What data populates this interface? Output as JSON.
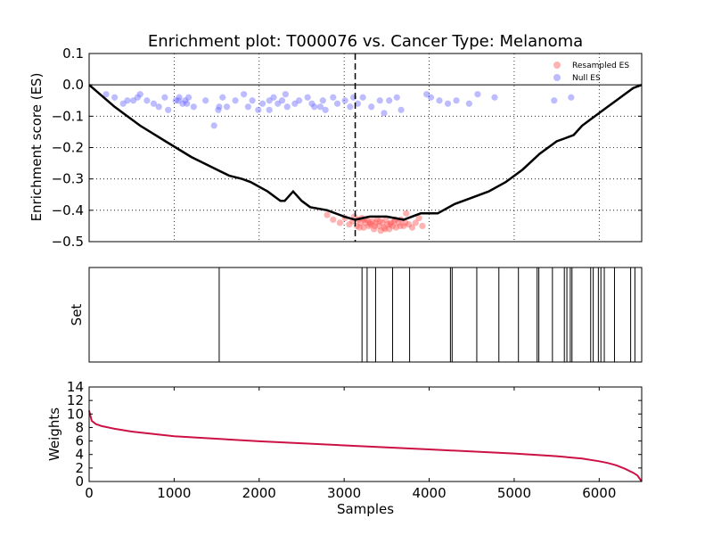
{
  "chart_data": [
    {
      "type": "line",
      "panel": "enrichment",
      "title": "Enrichment plot: T000076 vs. Cancer Type: Melanoma",
      "xlabel": "",
      "ylabel": "Enrichment score (ES)",
      "xlim": [
        0,
        6500
      ],
      "ylim": [
        -0.5,
        0.1
      ],
      "yticks": [
        "0.1",
        "0.0",
        "−0.1",
        "−0.2",
        "−0.3",
        "−0.4",
        "−0.5"
      ],
      "ytick_values": [
        0.1,
        0.0,
        -0.1,
        -0.2,
        -0.3,
        -0.4,
        -0.5
      ],
      "xgrid_values": [
        1000,
        2000,
        3000,
        4000,
        5000,
        6000
      ],
      "grid": true,
      "legend_position": "top-right",
      "legend": [
        "Resampled ES",
        "Null ES"
      ],
      "marker_x": 3130,
      "es_curve": {
        "color": "#000000",
        "x": [
          0,
          300,
          600,
          900,
          1200,
          1500,
          1650,
          1800,
          1900,
          2100,
          2200,
          2250,
          2300,
          2400,
          2500,
          2600,
          2800,
          3000,
          3130,
          3300,
          3500,
          3700,
          3900,
          4100,
          4300,
          4500,
          4700,
          4900,
          5100,
          5300,
          5500,
          5600,
          5700,
          5800,
          5900,
          6000,
          6100,
          6200,
          6300,
          6400,
          6500
        ],
        "y": [
          0.0,
          -0.07,
          -0.13,
          -0.18,
          -0.23,
          -0.27,
          -0.29,
          -0.3,
          -0.31,
          -0.34,
          -0.36,
          -0.37,
          -0.37,
          -0.34,
          -0.37,
          -0.39,
          -0.4,
          -0.42,
          -0.43,
          -0.42,
          -0.42,
          -0.43,
          -0.41,
          -0.41,
          -0.38,
          -0.36,
          -0.34,
          -0.31,
          -0.27,
          -0.22,
          -0.18,
          -0.17,
          -0.16,
          -0.13,
          -0.11,
          -0.09,
          -0.07,
          -0.05,
          -0.03,
          -0.01,
          0.0
        ]
      },
      "resampled_es": {
        "color": "#ff5555",
        "x": [
          2800,
          2870,
          2950,
          3010,
          3060,
          3100,
          3120,
          3150,
          3170,
          3190,
          3210,
          3230,
          3250,
          3270,
          3290,
          3310,
          3330,
          3350,
          3370,
          3390,
          3410,
          3430,
          3450,
          3470,
          3490,
          3510,
          3530,
          3550,
          3570,
          3590,
          3610,
          3640,
          3670,
          3700,
          3730,
          3760,
          3800,
          3840,
          3880,
          3920,
          3180,
          3240,
          3300,
          3360,
          3420,
          3480,
          3540,
          3600,
          3660,
          3720
        ],
        "y": [
          -0.415,
          -0.43,
          -0.44,
          -0.425,
          -0.445,
          -0.435,
          -0.42,
          -0.45,
          -0.43,
          -0.44,
          -0.425,
          -0.455,
          -0.44,
          -0.43,
          -0.45,
          -0.445,
          -0.435,
          -0.46,
          -0.44,
          -0.43,
          -0.45,
          -0.465,
          -0.44,
          -0.455,
          -0.43,
          -0.445,
          -0.46,
          -0.44,
          -0.45,
          -0.435,
          -0.455,
          -0.44,
          -0.43,
          -0.45,
          -0.41,
          -0.445,
          -0.455,
          -0.44,
          -0.425,
          -0.45,
          -0.455,
          -0.43,
          -0.44,
          -0.45,
          -0.435,
          -0.46,
          -0.445,
          -0.43,
          -0.45,
          -0.44
        ]
      },
      "null_es": {
        "color": "#6a6aff",
        "x": [
          200,
          300,
          400,
          450,
          520,
          570,
          600,
          680,
          760,
          820,
          890,
          930,
          1020,
          1060,
          1100,
          1130,
          1170,
          1230,
          1370,
          1470,
          1520,
          1570,
          1620,
          1720,
          1820,
          1870,
          1920,
          1990,
          2040,
          2120,
          2170,
          2220,
          2270,
          2310,
          2330,
          2420,
          2470,
          2570,
          2620,
          2720,
          2750,
          2780,
          2870,
          2920,
          3010,
          3070,
          3110,
          3160,
          3220,
          3320,
          3420,
          3470,
          3530,
          3620,
          3670,
          3970,
          4020,
          4120,
          4220,
          4320,
          4470,
          4570,
          4770,
          5470,
          5670,
          1050,
          1150,
          1530,
          2120,
          2650
        ],
        "y": [
          -0.03,
          -0.04,
          -0.06,
          -0.05,
          -0.05,
          -0.04,
          -0.03,
          -0.05,
          -0.06,
          -0.07,
          -0.04,
          -0.08,
          -0.05,
          -0.04,
          -0.06,
          -0.05,
          -0.04,
          -0.07,
          -0.05,
          -0.13,
          -0.08,
          -0.04,
          -0.07,
          -0.05,
          -0.03,
          -0.07,
          -0.05,
          -0.08,
          -0.06,
          -0.05,
          -0.04,
          -0.06,
          -0.05,
          -0.03,
          -0.07,
          -0.06,
          -0.05,
          -0.04,
          -0.06,
          -0.07,
          -0.05,
          -0.08,
          -0.04,
          -0.06,
          -0.05,
          -0.07,
          -0.04,
          -0.06,
          -0.04,
          -0.07,
          -0.05,
          -0.09,
          -0.05,
          -0.04,
          -0.08,
          -0.03,
          -0.04,
          -0.05,
          -0.06,
          -0.05,
          -0.06,
          -0.03,
          -0.04,
          -0.05,
          -0.04,
          -0.05,
          -0.06,
          -0.07,
          -0.08,
          -0.07
        ]
      }
    },
    {
      "type": "rug",
      "panel": "set",
      "ylabel": "Set",
      "xlim": [
        0,
        6500
      ],
      "hits": [
        1530,
        3210,
        3270,
        3370,
        3570,
        3770,
        4250,
        4270,
        4560,
        4820,
        5050,
        5270,
        5290,
        5450,
        5590,
        5620,
        5660,
        5680,
        5900,
        5930,
        5990,
        6020,
        6060,
        6180,
        6370,
        6420
      ]
    },
    {
      "type": "line",
      "panel": "weights",
      "xlabel": "Samples",
      "ylabel": "Weights",
      "xlim": [
        0,
        6500
      ],
      "ylim": [
        0,
        14
      ],
      "xticks": [
        "0",
        "1000",
        "2000",
        "3000",
        "4000",
        "5000",
        "6000"
      ],
      "xtick_values": [
        0,
        1000,
        2000,
        3000,
        4000,
        5000,
        6000
      ],
      "yticks": [
        "14",
        "12",
        "10",
        "8",
        "6",
        "4",
        "2",
        "0"
      ],
      "ytick_values": [
        14,
        12,
        10,
        8,
        6,
        4,
        2,
        0
      ],
      "color": "#cc1144",
      "x": [
        0,
        30,
        80,
        150,
        300,
        500,
        1000,
        2000,
        3000,
        4000,
        5000,
        5500,
        5800,
        6000,
        6100,
        6200,
        6300,
        6400,
        6450,
        6500
      ],
      "y": [
        10.5,
        9.0,
        8.5,
        8.2,
        7.8,
        7.4,
        6.7,
        5.95,
        5.35,
        4.75,
        4.15,
        3.75,
        3.4,
        3.0,
        2.75,
        2.4,
        1.9,
        1.3,
        0.9,
        0.0
      ]
    }
  ]
}
